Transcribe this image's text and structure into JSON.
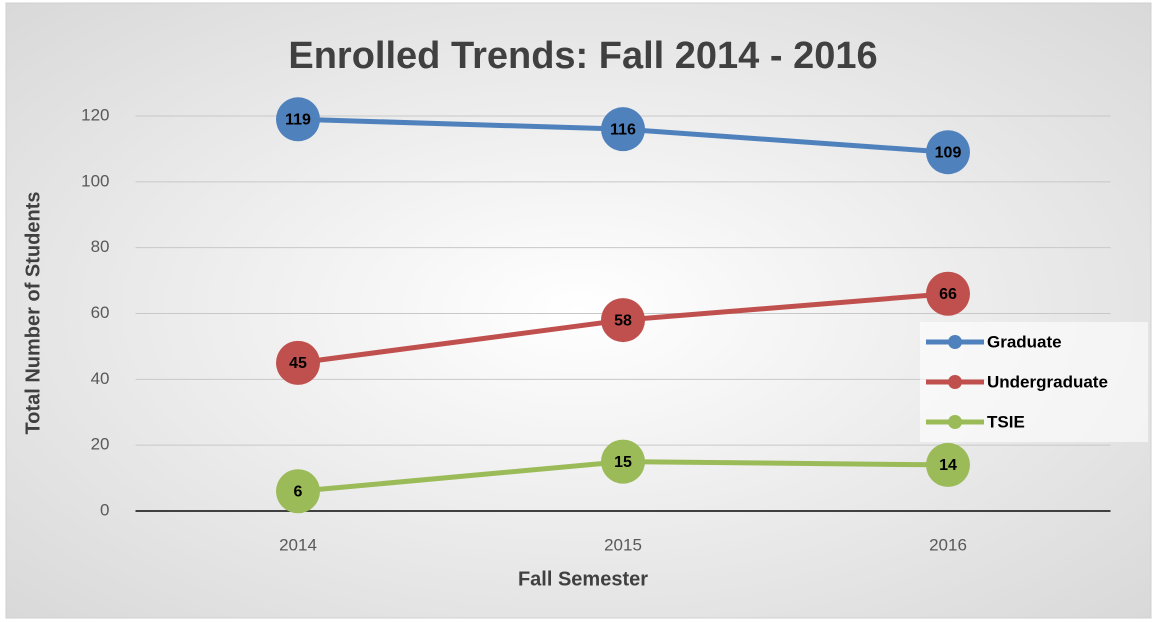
{
  "chart_data": {
    "type": "line",
    "title": "Enrolled Trends: Fall 2014 - 2016",
    "x_label": "Fall Semester",
    "y_label": "Total Number of Students",
    "categories": [
      "2014",
      "2015",
      "2016"
    ],
    "series": [
      {
        "name": "Graduate",
        "color": "#4f81bd",
        "values": [
          119,
          116,
          109
        ]
      },
      {
        "name": "Undergraduate",
        "color": "#c0504d",
        "values": [
          45,
          58,
          66
        ]
      },
      {
        "name": "TSIE",
        "color": "#9bbb59",
        "values": [
          6,
          15,
          14
        ]
      }
    ],
    "ylim": [
      0,
      120
    ],
    "yticks": [
      0,
      20,
      40,
      60,
      80,
      100,
      120
    ],
    "grid": true,
    "legend": "right"
  }
}
